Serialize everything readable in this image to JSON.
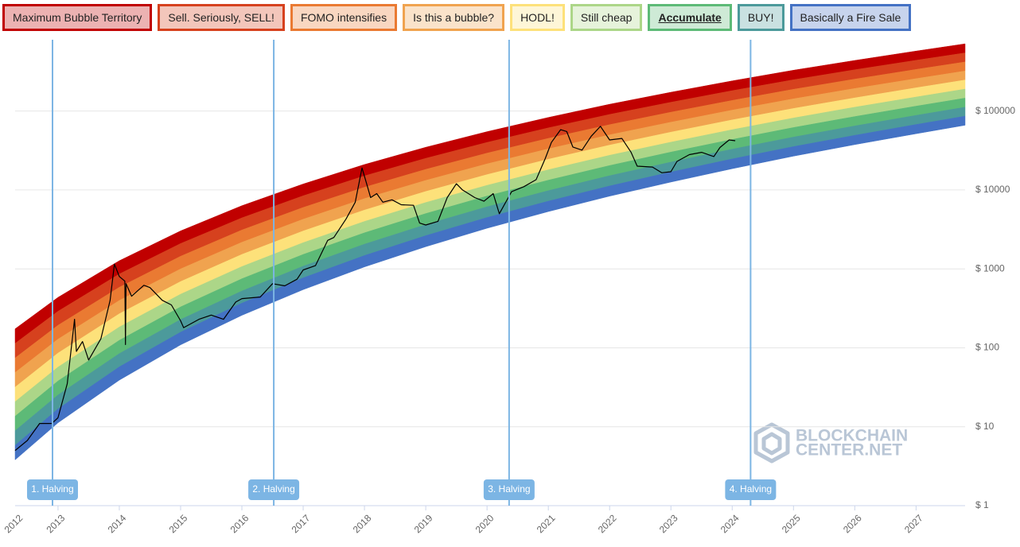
{
  "chart_data": {
    "type": "rainbow",
    "legend_active": 6,
    "series": [
      {
        "name": "Maximum Bubble Territory",
        "color": "#c00000"
      },
      {
        "name": "Sell. Seriously, SELL!",
        "color": "#d6411e"
      },
      {
        "name": "FOMO intensifies",
        "color": "#ea7a32"
      },
      {
        "name": "Is this a bubble?",
        "color": "#f0a34f"
      },
      {
        "name": "HODL!",
        "color": "#fde17a"
      },
      {
        "name": "Still cheap",
        "color": "#acd688"
      },
      {
        "name": "Accumulate",
        "color": "#5dba77"
      },
      {
        "name": "BUY!",
        "color": "#4c9a9b"
      },
      {
        "name": "Basically a Fire Sale",
        "color": "#4472c4"
      }
    ],
    "band_x": [
      2012.3,
      2013,
      2014,
      2015,
      2016,
      2017,
      2018,
      2019,
      2020,
      2021,
      2022,
      2023,
      2024,
      2025,
      2026,
      2027,
      2027.8
    ],
    "band_top": [
      174,
      436,
      1270,
      3030,
      6320,
      11900,
      21000,
      34800,
      54800,
      83000,
      122000,
      173000,
      241000,
      329000,
      438000,
      575000,
      710000
    ],
    "band_bottom": [
      3.8,
      11.2,
      39,
      109,
      258,
      546,
      1060,
      1910,
      3270,
      5320,
      8340,
      12600,
      18600,
      26800,
      37500,
      51600,
      66100
    ],
    "line": {
      "color": "#000000",
      "x": [
        2012.3,
        2012.5,
        2012.7,
        2012.9,
        2013.0,
        2013.15,
        2013.27,
        2013.3,
        2013.4,
        2013.5,
        2013.7,
        2013.85,
        2013.92,
        2014.0,
        2014.09,
        2014.1,
        2014.11,
        2014.2,
        2014.4,
        2014.5,
        2014.7,
        2014.85,
        2015.0,
        2015.05,
        2015.3,
        2015.5,
        2015.7,
        2015.9,
        2016.0,
        2016.3,
        2016.5,
        2016.7,
        2016.9,
        2017.0,
        2017.2,
        2017.4,
        2017.5,
        2017.7,
        2017.85,
        2017.96,
        2018.05,
        2018.1,
        2018.2,
        2018.3,
        2018.45,
        2018.6,
        2018.8,
        2018.9,
        2019.0,
        2019.2,
        2019.35,
        2019.5,
        2019.6,
        2019.8,
        2019.95,
        2020.1,
        2020.2,
        2020.4,
        2020.6,
        2020.8,
        2020.95,
        2021.05,
        2021.2,
        2021.3,
        2021.4,
        2021.55,
        2021.7,
        2021.85,
        2022.0,
        2022.2,
        2022.35,
        2022.45,
        2022.7,
        2022.85,
        2023.0,
        2023.1,
        2023.3,
        2023.5,
        2023.7,
        2023.8,
        2023.95,
        2024.05
      ],
      "values": [
        5,
        6.7,
        11,
        11,
        13,
        35,
        230,
        90,
        120,
        70,
        130,
        400,
        1150,
        800,
        700,
        110,
        650,
        450,
        620,
        580,
        400,
        350,
        220,
        180,
        230,
        260,
        230,
        380,
        420,
        440,
        650,
        610,
        740,
        970,
        1100,
        2300,
        2500,
        4300,
        7000,
        19000,
        11000,
        8000,
        9000,
        7000,
        7500,
        6500,
        6400,
        3800,
        3600,
        4000,
        8000,
        12000,
        10000,
        8000,
        7200,
        9000,
        5000,
        9500,
        11000,
        13500,
        25000,
        40000,
        58000,
        55000,
        35000,
        32000,
        48000,
        64000,
        43000,
        45000,
        30000,
        20000,
        19500,
        16500,
        17000,
        23000,
        28000,
        30000,
        26500,
        34500,
        43000,
        42000
      ]
    },
    "annotations": [
      {
        "text": "1. Halving",
        "x": 2012.91
      },
      {
        "text": "2. Halving",
        "x": 2016.52
      },
      {
        "text": "3. Halving",
        "x": 2020.36
      },
      {
        "text": "4. Halving",
        "x": 2024.3
      }
    ],
    "annotation_color": "#7cb5e4",
    "watermark": [
      "BLOCKCHAIN",
      "CENTER.NET"
    ],
    "xlim": [
      2012.3,
      2027.8
    ],
    "xticks": [
      2012,
      2013,
      2014,
      2015,
      2016,
      2017,
      2018,
      2019,
      2020,
      2021,
      2022,
      2023,
      2024,
      2025,
      2026,
      2027
    ],
    "ylim": [
      1,
      800000
    ],
    "yticks": [
      {
        "value": 1,
        "label": "$ 1"
      },
      {
        "value": 10,
        "label": "$ 10"
      },
      {
        "value": 100,
        "label": "$ 100"
      },
      {
        "value": 1000,
        "label": "$ 1000"
      },
      {
        "value": 10000,
        "label": "$ 10000"
      },
      {
        "value": 100000,
        "label": "$ 100000"
      }
    ],
    "log_y": true,
    "grid": true
  }
}
